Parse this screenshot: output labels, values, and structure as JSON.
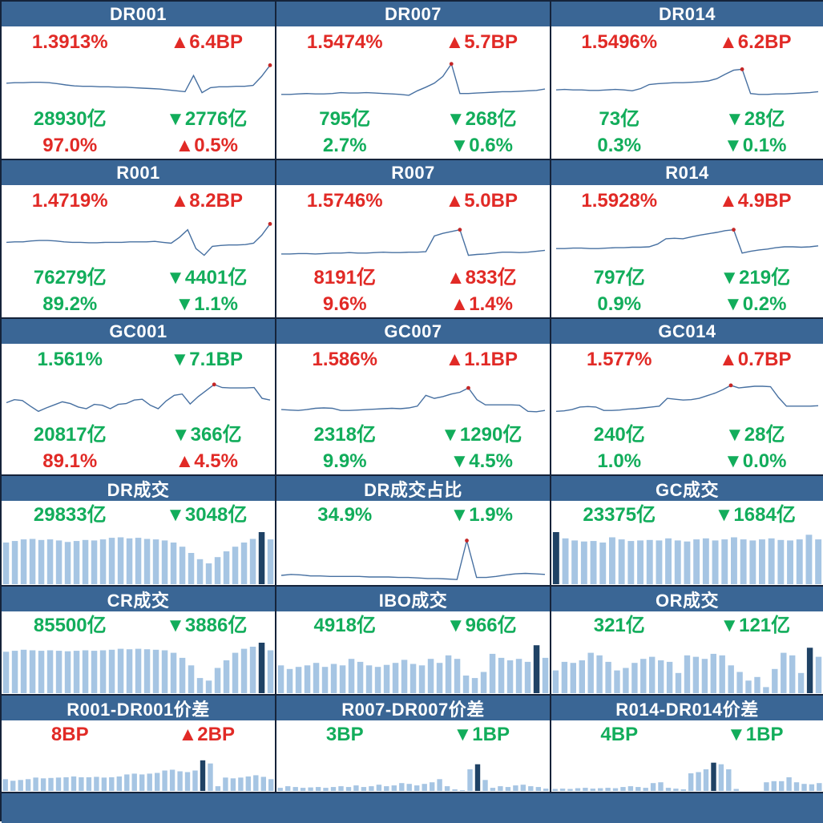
{
  "colors": {
    "header_bg": "#3a6695",
    "header_text": "#ffffff",
    "up_red": "#e12a26",
    "down_green": "#12ad5b",
    "line": "#4770a1",
    "marker": "#c42727",
    "bar": "#a6c5e3",
    "bar_highlight": "#1f4265",
    "border": "#15233a",
    "footer_bg": "#3a6695"
  },
  "panels": [
    {
      "title": "DR001",
      "rate": {
        "t": "1.3913%",
        "c": "r"
      },
      "rate_chg": {
        "t": "▲6.4BP",
        "c": "r"
      },
      "vol": {
        "t": "28930亿",
        "c": "g"
      },
      "vol_chg": {
        "t": "▼2776亿",
        "c": "g"
      },
      "share": {
        "t": "97.0%",
        "c": "r"
      },
      "share_chg": {
        "t": "▲0.5%",
        "c": "r"
      }
    },
    {
      "title": "DR007",
      "rate": {
        "t": "1.5474%",
        "c": "r"
      },
      "rate_chg": {
        "t": "▲5.7BP",
        "c": "r"
      },
      "vol": {
        "t": "795亿",
        "c": "g"
      },
      "vol_chg": {
        "t": "▼268亿",
        "c": "g"
      },
      "share": {
        "t": "2.7%",
        "c": "g"
      },
      "share_chg": {
        "t": "▼0.6%",
        "c": "g"
      }
    },
    {
      "title": "DR014",
      "rate": {
        "t": "1.5496%",
        "c": "r"
      },
      "rate_chg": {
        "t": "▲6.2BP",
        "c": "r"
      },
      "vol": {
        "t": "73亿",
        "c": "g"
      },
      "vol_chg": {
        "t": "▼28亿",
        "c": "g"
      },
      "share": {
        "t": "0.3%",
        "c": "g"
      },
      "share_chg": {
        "t": "▼0.1%",
        "c": "g"
      }
    },
    {
      "title": "R001",
      "rate": {
        "t": "1.4719%",
        "c": "r"
      },
      "rate_chg": {
        "t": "▲8.2BP",
        "c": "r"
      },
      "vol": {
        "t": "76279亿",
        "c": "g"
      },
      "vol_chg": {
        "t": "▼4401亿",
        "c": "g"
      },
      "share": {
        "t": "89.2%",
        "c": "g"
      },
      "share_chg": {
        "t": "▼1.1%",
        "c": "g"
      }
    },
    {
      "title": "R007",
      "rate": {
        "t": "1.5746%",
        "c": "r"
      },
      "rate_chg": {
        "t": "▲5.0BP",
        "c": "r"
      },
      "vol": {
        "t": "8191亿",
        "c": "r"
      },
      "vol_chg": {
        "t": "▲833亿",
        "c": "r"
      },
      "share": {
        "t": "9.6%",
        "c": "r"
      },
      "share_chg": {
        "t": "▲1.4%",
        "c": "r"
      }
    },
    {
      "title": "R014",
      "rate": {
        "t": "1.5928%",
        "c": "r"
      },
      "rate_chg": {
        "t": "▲4.9BP",
        "c": "r"
      },
      "vol": {
        "t": "797亿",
        "c": "g"
      },
      "vol_chg": {
        "t": "▼219亿",
        "c": "g"
      },
      "share": {
        "t": "0.9%",
        "c": "g"
      },
      "share_chg": {
        "t": "▼0.2%",
        "c": "g"
      }
    },
    {
      "title": "GC001",
      "rate": {
        "t": "1.561%",
        "c": "g"
      },
      "rate_chg": {
        "t": "▼7.1BP",
        "c": "g"
      },
      "vol": {
        "t": "20817亿",
        "c": "g"
      },
      "vol_chg": {
        "t": "▼366亿",
        "c": "g"
      },
      "share": {
        "t": "89.1%",
        "c": "r"
      },
      "share_chg": {
        "t": "▲4.5%",
        "c": "r"
      }
    },
    {
      "title": "GC007",
      "rate": {
        "t": "1.586%",
        "c": "r"
      },
      "rate_chg": {
        "t": "▲1.1BP",
        "c": "r"
      },
      "vol": {
        "t": "2318亿",
        "c": "g"
      },
      "vol_chg": {
        "t": "▼1290亿",
        "c": "g"
      },
      "share": {
        "t": "9.9%",
        "c": "g"
      },
      "share_chg": {
        "t": "▼4.5%",
        "c": "g"
      }
    },
    {
      "title": "GC014",
      "rate": {
        "t": "1.577%",
        "c": "r"
      },
      "rate_chg": {
        "t": "▲0.7BP",
        "c": "r"
      },
      "vol": {
        "t": "240亿",
        "c": "g"
      },
      "vol_chg": {
        "t": "▼28亿",
        "c": "g"
      },
      "share": {
        "t": "1.0%",
        "c": "g"
      },
      "share_chg": {
        "t": "▼0.0%",
        "c": "g"
      }
    },
    {
      "title": "DR成交",
      "vol": {
        "t": "29833亿",
        "c": "g"
      },
      "vol_chg": {
        "t": "▼3048亿",
        "c": "g"
      }
    },
    {
      "title": "DR成交占比",
      "vol": {
        "t": "34.9%",
        "c": "g"
      },
      "vol_chg": {
        "t": "▼1.9%",
        "c": "g"
      }
    },
    {
      "title": "GC成交",
      "vol": {
        "t": "23375亿",
        "c": "g"
      },
      "vol_chg": {
        "t": "▼1684亿",
        "c": "g"
      }
    },
    {
      "title": "CR成交",
      "vol": {
        "t": "85500亿",
        "c": "g"
      },
      "vol_chg": {
        "t": "▼3886亿",
        "c": "g"
      }
    },
    {
      "title": "IBO成交",
      "vol": {
        "t": "4918亿",
        "c": "g"
      },
      "vol_chg": {
        "t": "▼966亿",
        "c": "g"
      }
    },
    {
      "title": "OR成交",
      "vol": {
        "t": "321亿",
        "c": "g"
      },
      "vol_chg": {
        "t": "▼121亿",
        "c": "g"
      }
    },
    {
      "title": "R001-DR001价差",
      "vol": {
        "t": "8BP",
        "c": "r"
      },
      "vol_chg": {
        "t": "▲2BP",
        "c": "r"
      }
    },
    {
      "title": "R007-DR007价差",
      "vol": {
        "t": "3BP",
        "c": "g"
      },
      "vol_chg": {
        "t": "▼1BP",
        "c": "g"
      }
    },
    {
      "title": "R014-DR014价差",
      "vol": {
        "t": "4BP",
        "c": "g"
      },
      "vol_chg": {
        "t": "▼1BP",
        "c": "g"
      }
    }
  ],
  "chart_data": [
    {
      "type": "line",
      "title": "DR001",
      "axes": "hidden",
      "values_norm": [
        0.45,
        0.46,
        0.46,
        0.47,
        0.47,
        0.46,
        0.44,
        0.41,
        0.39,
        0.38,
        0.38,
        0.37,
        0.37,
        0.36,
        0.36,
        0.35,
        0.34,
        0.33,
        0.32,
        0.3,
        0.28,
        0.26,
        0.62,
        0.24,
        0.35,
        0.37,
        0.37,
        0.38,
        0.38,
        0.4,
        0.6,
        0.85
      ],
      "marker_index": 31
    },
    {
      "type": "line",
      "title": "DR007",
      "axes": "hidden",
      "values_norm": [
        0.2,
        0.2,
        0.21,
        0.22,
        0.21,
        0.21,
        0.22,
        0.24,
        0.23,
        0.23,
        0.24,
        0.23,
        0.22,
        0.21,
        0.2,
        0.18,
        0.28,
        0.36,
        0.45,
        0.6,
        0.88,
        0.22,
        0.22,
        0.23,
        0.24,
        0.25,
        0.26,
        0.26,
        0.27,
        0.28,
        0.29,
        0.32
      ],
      "marker_index": 20
    },
    {
      "type": "line",
      "title": "DR014",
      "axes": "hidden",
      "values_norm": [
        0.3,
        0.31,
        0.3,
        0.3,
        0.29,
        0.29,
        0.3,
        0.31,
        0.3,
        0.28,
        0.33,
        0.42,
        0.44,
        0.45,
        0.46,
        0.46,
        0.47,
        0.48,
        0.5,
        0.55,
        0.65,
        0.74,
        0.76,
        0.22,
        0.2,
        0.2,
        0.21,
        0.21,
        0.22,
        0.23,
        0.24,
        0.26
      ],
      "marker_index": 22
    },
    {
      "type": "line",
      "title": "R001",
      "axes": "hidden",
      "values_norm": [
        0.44,
        0.45,
        0.45,
        0.47,
        0.48,
        0.48,
        0.47,
        0.45,
        0.44,
        0.44,
        0.43,
        0.43,
        0.44,
        0.44,
        0.44,
        0.45,
        0.45,
        0.45,
        0.46,
        0.44,
        0.42,
        0.55,
        0.72,
        0.3,
        0.15,
        0.35,
        0.37,
        0.38,
        0.38,
        0.39,
        0.42,
        0.6,
        0.85
      ],
      "marker_index": 32
    },
    {
      "type": "line",
      "title": "R007",
      "axes": "hidden",
      "values_norm": [
        0.18,
        0.18,
        0.19,
        0.19,
        0.18,
        0.19,
        0.2,
        0.2,
        0.21,
        0.2,
        0.2,
        0.21,
        0.22,
        0.21,
        0.21,
        0.22,
        0.22,
        0.23,
        0.58,
        0.64,
        0.68,
        0.72,
        0.15,
        0.17,
        0.18,
        0.2,
        0.22,
        0.22,
        0.21,
        0.22,
        0.24,
        0.26
      ],
      "marker_index": 21
    },
    {
      "type": "line",
      "title": "R014",
      "axes": "hidden",
      "values_norm": [
        0.3,
        0.3,
        0.31,
        0.31,
        0.3,
        0.3,
        0.31,
        0.32,
        0.32,
        0.33,
        0.33,
        0.34,
        0.4,
        0.52,
        0.53,
        0.52,
        0.56,
        0.6,
        0.63,
        0.66,
        0.7,
        0.72,
        0.2,
        0.24,
        0.27,
        0.29,
        0.32,
        0.34,
        0.34,
        0.33,
        0.34,
        0.36
      ],
      "marker_index": 21
    },
    {
      "type": "line",
      "title": "GC001",
      "axes": "hidden",
      "values_norm": [
        0.38,
        0.45,
        0.43,
        0.3,
        0.18,
        0.26,
        0.33,
        0.4,
        0.36,
        0.28,
        0.24,
        0.34,
        0.32,
        0.24,
        0.34,
        0.36,
        0.44,
        0.46,
        0.32,
        0.24,
        0.42,
        0.55,
        0.58,
        0.35,
        0.52,
        0.66,
        0.8,
        0.73,
        0.72,
        0.72,
        0.72,
        0.73,
        0.48,
        0.44
      ],
      "marker_index": 26
    },
    {
      "type": "line",
      "title": "GC007",
      "axes": "hidden",
      "values_norm": [
        0.22,
        0.21,
        0.2,
        0.22,
        0.25,
        0.26,
        0.25,
        0.2,
        0.2,
        0.21,
        0.22,
        0.23,
        0.24,
        0.25,
        0.24,
        0.26,
        0.3,
        0.55,
        0.48,
        0.52,
        0.58,
        0.62,
        0.72,
        0.45,
        0.33,
        0.33,
        0.33,
        0.33,
        0.32,
        0.18,
        0.17,
        0.2
      ],
      "marker_index": 22
    },
    {
      "type": "line",
      "title": "GC014",
      "axes": "hidden",
      "values_norm": [
        0.18,
        0.19,
        0.22,
        0.28,
        0.29,
        0.28,
        0.2,
        0.2,
        0.21,
        0.23,
        0.24,
        0.26,
        0.28,
        0.3,
        0.48,
        0.46,
        0.44,
        0.45,
        0.48,
        0.54,
        0.6,
        0.68,
        0.78,
        0.72,
        0.74,
        0.76,
        0.76,
        0.75,
        0.5,
        0.3,
        0.3,
        0.3,
        0.3,
        0.31
      ],
      "marker_index": 22
    },
    {
      "type": "bar",
      "title": "DR成交",
      "axes": "hidden",
      "values_norm": [
        0.8,
        0.83,
        0.86,
        0.87,
        0.85,
        0.86,
        0.84,
        0.81,
        0.83,
        0.85,
        0.84,
        0.86,
        0.89,
        0.9,
        0.88,
        0.89,
        0.87,
        0.86,
        0.84,
        0.8,
        0.72,
        0.6,
        0.48,
        0.4,
        0.52,
        0.63,
        0.72,
        0.8,
        0.87,
        1.0,
        0.86
      ],
      "highlight_index": 29
    },
    {
      "type": "line",
      "title": "DR成交占比",
      "axes": "hidden",
      "values_norm": [
        0.14,
        0.16,
        0.15,
        0.13,
        0.13,
        0.12,
        0.12,
        0.12,
        0.12,
        0.11,
        0.11,
        0.11,
        0.1,
        0.1,
        0.09,
        0.08,
        0.08,
        0.07,
        0.06,
        0.82,
        0.1,
        0.1,
        0.12,
        0.15,
        0.17,
        0.18,
        0.17,
        0.16
      ],
      "marker_index": 19
    },
    {
      "type": "bar",
      "title": "GC成交",
      "axes": "hidden",
      "values_norm": [
        1.0,
        0.88,
        0.84,
        0.82,
        0.83,
        0.8,
        0.9,
        0.86,
        0.83,
        0.84,
        0.85,
        0.84,
        0.88,
        0.84,
        0.82,
        0.86,
        0.88,
        0.84,
        0.86,
        0.9,
        0.86,
        0.84,
        0.86,
        0.88,
        0.85,
        0.84,
        0.86,
        0.95,
        0.86
      ],
      "highlight_index": 0
    },
    {
      "type": "bar",
      "title": "CR成交",
      "axes": "hidden",
      "values_norm": [
        0.82,
        0.84,
        0.86,
        0.85,
        0.84,
        0.85,
        0.84,
        0.83,
        0.84,
        0.85,
        0.84,
        0.85,
        0.86,
        0.88,
        0.87,
        0.88,
        0.87,
        0.86,
        0.85,
        0.8,
        0.7,
        0.55,
        0.3,
        0.25,
        0.5,
        0.65,
        0.8,
        0.88,
        0.92,
        1.0,
        0.85
      ],
      "highlight_index": 29
    },
    {
      "type": "bar",
      "title": "IBO成交",
      "axes": "hidden",
      "values_norm": [
        0.55,
        0.48,
        0.52,
        0.55,
        0.6,
        0.52,
        0.58,
        0.55,
        0.68,
        0.62,
        0.55,
        0.52,
        0.56,
        0.6,
        0.66,
        0.58,
        0.55,
        0.68,
        0.6,
        0.75,
        0.68,
        0.35,
        0.3,
        0.42,
        0.78,
        0.7,
        0.65,
        0.68,
        0.62,
        0.95,
        0.7
      ],
      "highlight_index": 29
    },
    {
      "type": "bar",
      "title": "OR成交",
      "axes": "hidden",
      "values_norm": [
        0.45,
        0.62,
        0.6,
        0.65,
        0.8,
        0.75,
        0.62,
        0.45,
        0.5,
        0.6,
        0.68,
        0.72,
        0.65,
        0.62,
        0.4,
        0.75,
        0.72,
        0.68,
        0.78,
        0.75,
        0.55,
        0.42,
        0.25,
        0.32,
        0.12,
        0.48,
        0.8,
        0.75,
        0.4,
        0.9,
        0.72
      ],
      "highlight_index": 29
    },
    {
      "type": "bar",
      "title": "R001-DR001价差",
      "axes": "hidden",
      "values_norm": [
        0.3,
        0.26,
        0.28,
        0.3,
        0.34,
        0.32,
        0.33,
        0.34,
        0.35,
        0.37,
        0.35,
        0.35,
        0.36,
        0.34,
        0.35,
        0.37,
        0.42,
        0.44,
        0.42,
        0.44,
        0.46,
        0.52,
        0.54,
        0.5,
        0.48,
        0.52,
        0.78,
        0.7,
        0.12,
        0.34,
        0.32,
        0.34,
        0.37,
        0.4,
        0.36,
        0.3
      ],
      "highlight_index": 26
    },
    {
      "type": "bar",
      "title": "R007-DR007价差",
      "axes": "hidden",
      "values_norm": [
        0.08,
        0.12,
        0.1,
        0.08,
        0.09,
        0.1,
        0.08,
        0.1,
        0.12,
        0.1,
        0.14,
        0.1,
        0.12,
        0.16,
        0.12,
        0.14,
        0.2,
        0.18,
        0.14,
        0.18,
        0.22,
        0.3,
        0.12,
        0.04,
        0.02,
        0.55,
        0.68,
        0.28,
        0.08,
        0.12,
        0.1,
        0.14,
        0.16,
        0.12,
        0.1,
        0.06
      ],
      "highlight_index": 26
    },
    {
      "type": "bar",
      "title": "R014-DR014价差",
      "axes": "hidden",
      "values_norm": [
        0.05,
        0.06,
        0.05,
        0.07,
        0.08,
        0.06,
        0.07,
        0.08,
        0.07,
        0.1,
        0.12,
        0.1,
        0.08,
        0.2,
        0.22,
        0.08,
        0.06,
        0.04,
        0.45,
        0.48,
        0.55,
        0.72,
        0.68,
        0.55,
        0.05,
        0,
        0,
        0,
        0.22,
        0.25,
        0.25,
        0.35,
        0.22,
        0.18,
        0.17,
        0.2
      ],
      "highlight_index": 21
    }
  ]
}
